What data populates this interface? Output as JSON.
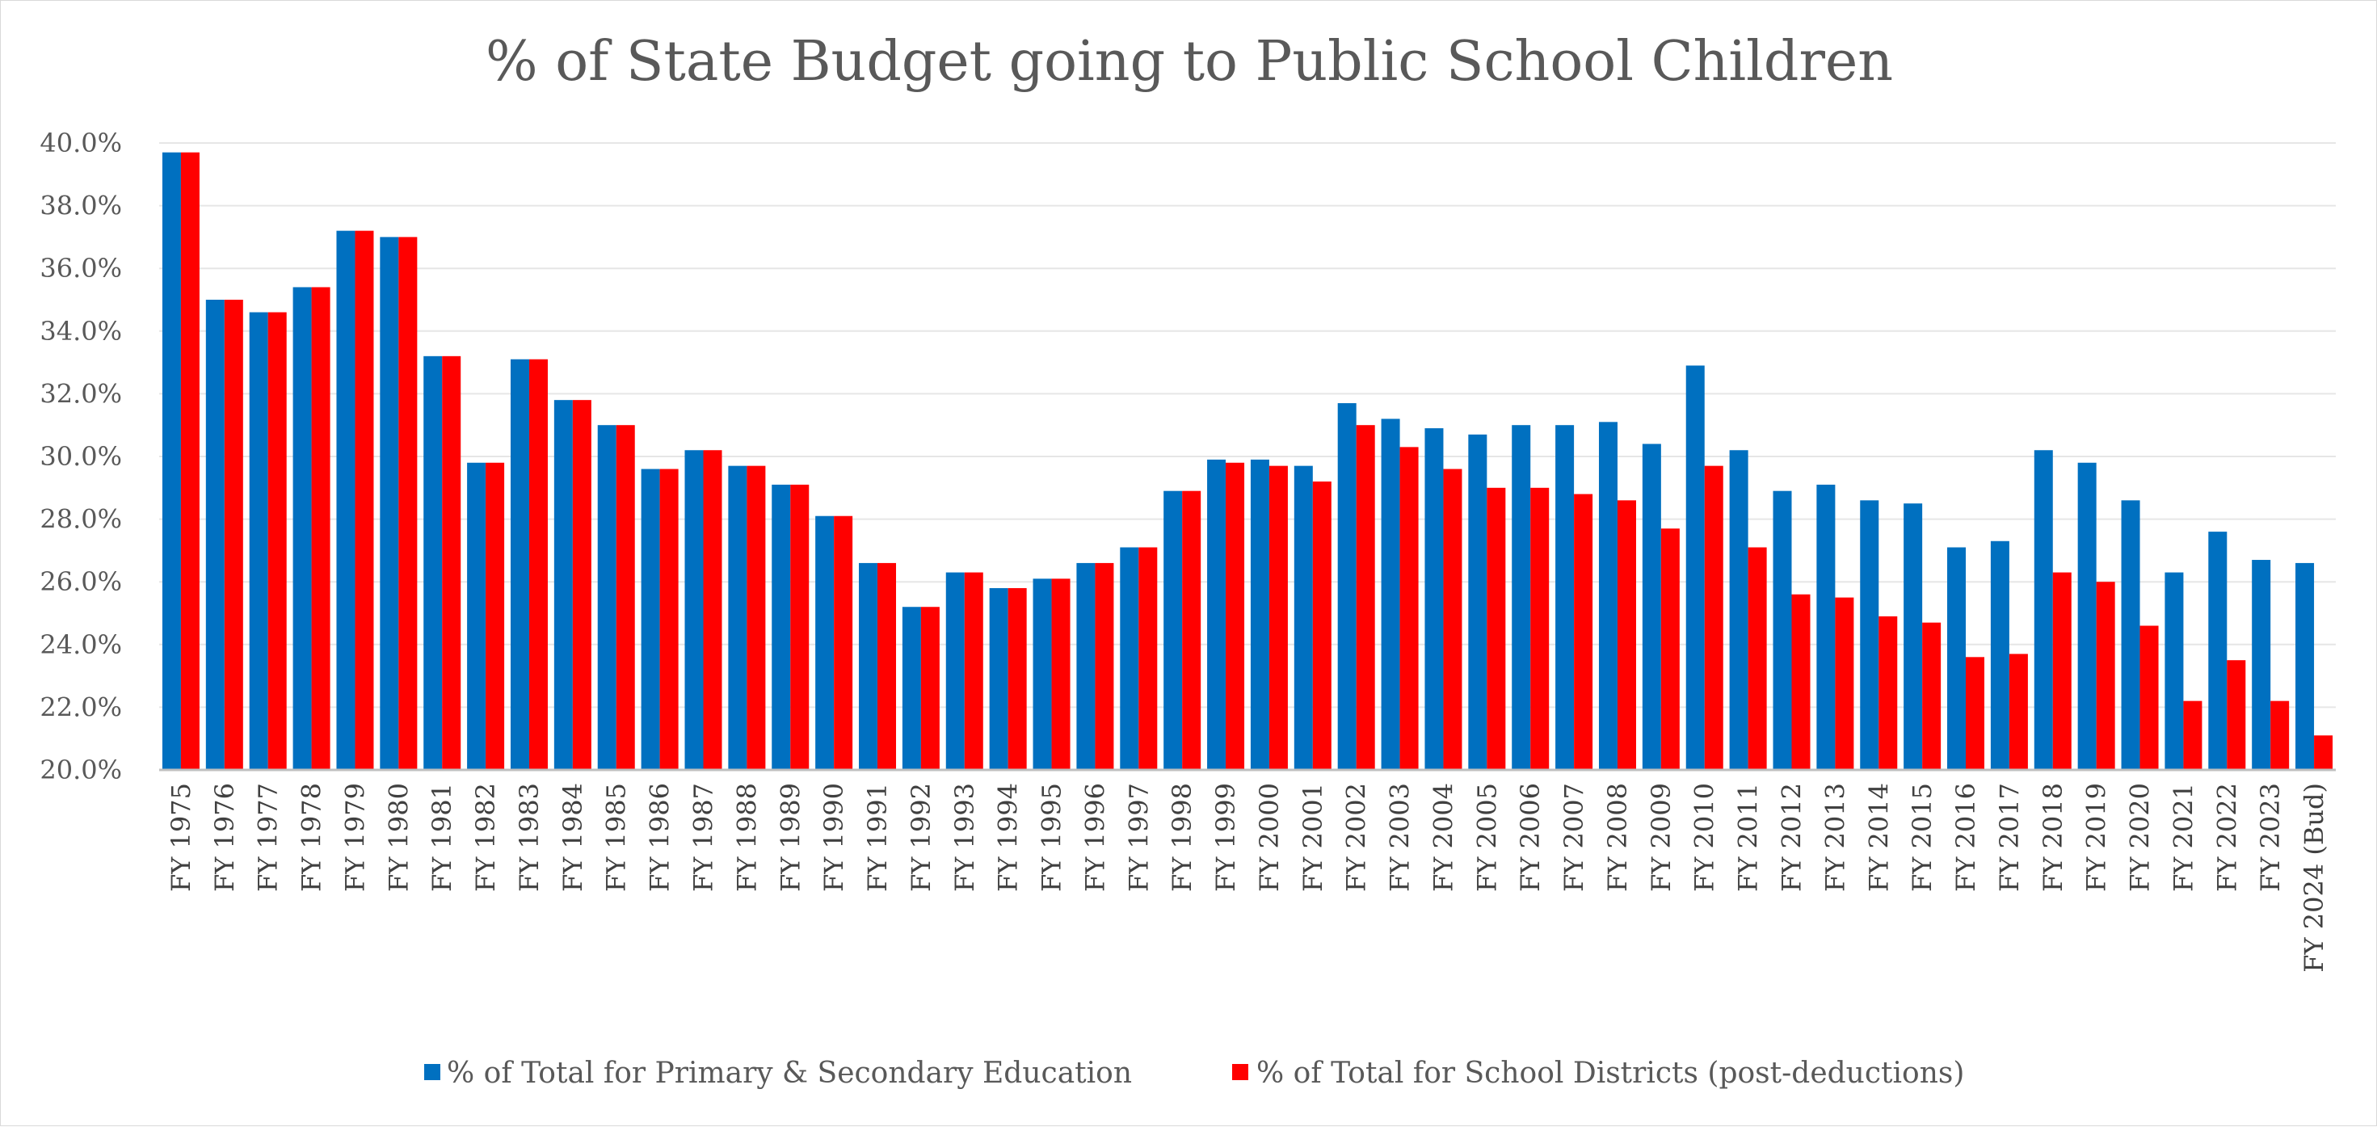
{
  "chart_data": {
    "type": "bar",
    "title": "% of State Budget going to Public School Children",
    "xlabel": "",
    "ylabel": "",
    "ylim": [
      20.0,
      40.0
    ],
    "y_ticks": [
      "20.0%",
      "22.0%",
      "24.0%",
      "26.0%",
      "28.0%",
      "30.0%",
      "32.0%",
      "34.0%",
      "36.0%",
      "38.0%",
      "40.0%"
    ],
    "y_tick_values": [
      20,
      22,
      24,
      26,
      28,
      30,
      32,
      34,
      36,
      38,
      40
    ],
    "grid": true,
    "legend_position": "bottom",
    "categories": [
      "FY 1975",
      "FY 1976",
      "FY 1977",
      "FY 1978",
      "FY 1979",
      "FY 1980",
      "FY 1981",
      "FY 1982",
      "FY 1983",
      "FY 1984",
      "FY 1985",
      "FY 1986",
      "FY 1987",
      "FY 1988",
      "FY 1989",
      "FY 1990",
      "FY 1991",
      "FY 1992",
      "FY 1993",
      "FY 1994",
      "FY 1995",
      "FY 1996",
      "FY 1997",
      "FY 1998",
      "FY 1999",
      "FY 2000",
      "FY 2001",
      "FY 2002",
      "FY 2003",
      "FY 2004",
      "FY 2005",
      "FY 2006",
      "FY 2007",
      "FY 2008",
      "FY 2009",
      "FY 2010",
      "FY 2011",
      "FY 2012",
      "FY 2013",
      "FY 2014",
      "FY 2015",
      "FY 2016",
      "FY 2017",
      "FY 2018",
      "FY 2019",
      "FY 2020",
      "FY 2021",
      "FY 2022",
      "FY 2023",
      "FY 2024 (Bud)"
    ],
    "series": [
      {
        "name": "% of Total for Primary & Secondary Education",
        "color": "#0070C0",
        "values": [
          39.7,
          35.0,
          34.6,
          35.4,
          37.2,
          37.0,
          33.2,
          29.8,
          33.1,
          31.8,
          31.0,
          29.6,
          30.2,
          29.7,
          29.1,
          28.1,
          26.6,
          25.2,
          26.3,
          25.8,
          26.1,
          26.6,
          27.1,
          28.9,
          29.9,
          29.9,
          29.7,
          31.7,
          31.2,
          30.9,
          30.7,
          31.0,
          31.0,
          31.1,
          30.4,
          32.9,
          30.2,
          28.9,
          29.1,
          28.6,
          28.5,
          27.1,
          27.3,
          30.2,
          29.8,
          28.6,
          26.3,
          27.6,
          26.7,
          26.6
        ]
      },
      {
        "name": "% of Total for School Districts (post-deductions)",
        "color": "#FF0000",
        "values": [
          39.7,
          35.0,
          34.6,
          35.4,
          37.2,
          37.0,
          33.2,
          29.8,
          33.1,
          31.8,
          31.0,
          29.6,
          30.2,
          29.7,
          29.1,
          28.1,
          26.6,
          25.2,
          26.3,
          25.8,
          26.1,
          26.6,
          27.1,
          28.9,
          29.8,
          29.7,
          29.2,
          31.0,
          30.3,
          29.6,
          29.0,
          29.0,
          28.8,
          28.6,
          27.7,
          29.7,
          27.1,
          25.6,
          25.5,
          24.9,
          24.7,
          23.6,
          23.7,
          26.3,
          26.0,
          24.6,
          22.2,
          23.5,
          22.2,
          21.1
        ]
      }
    ]
  }
}
